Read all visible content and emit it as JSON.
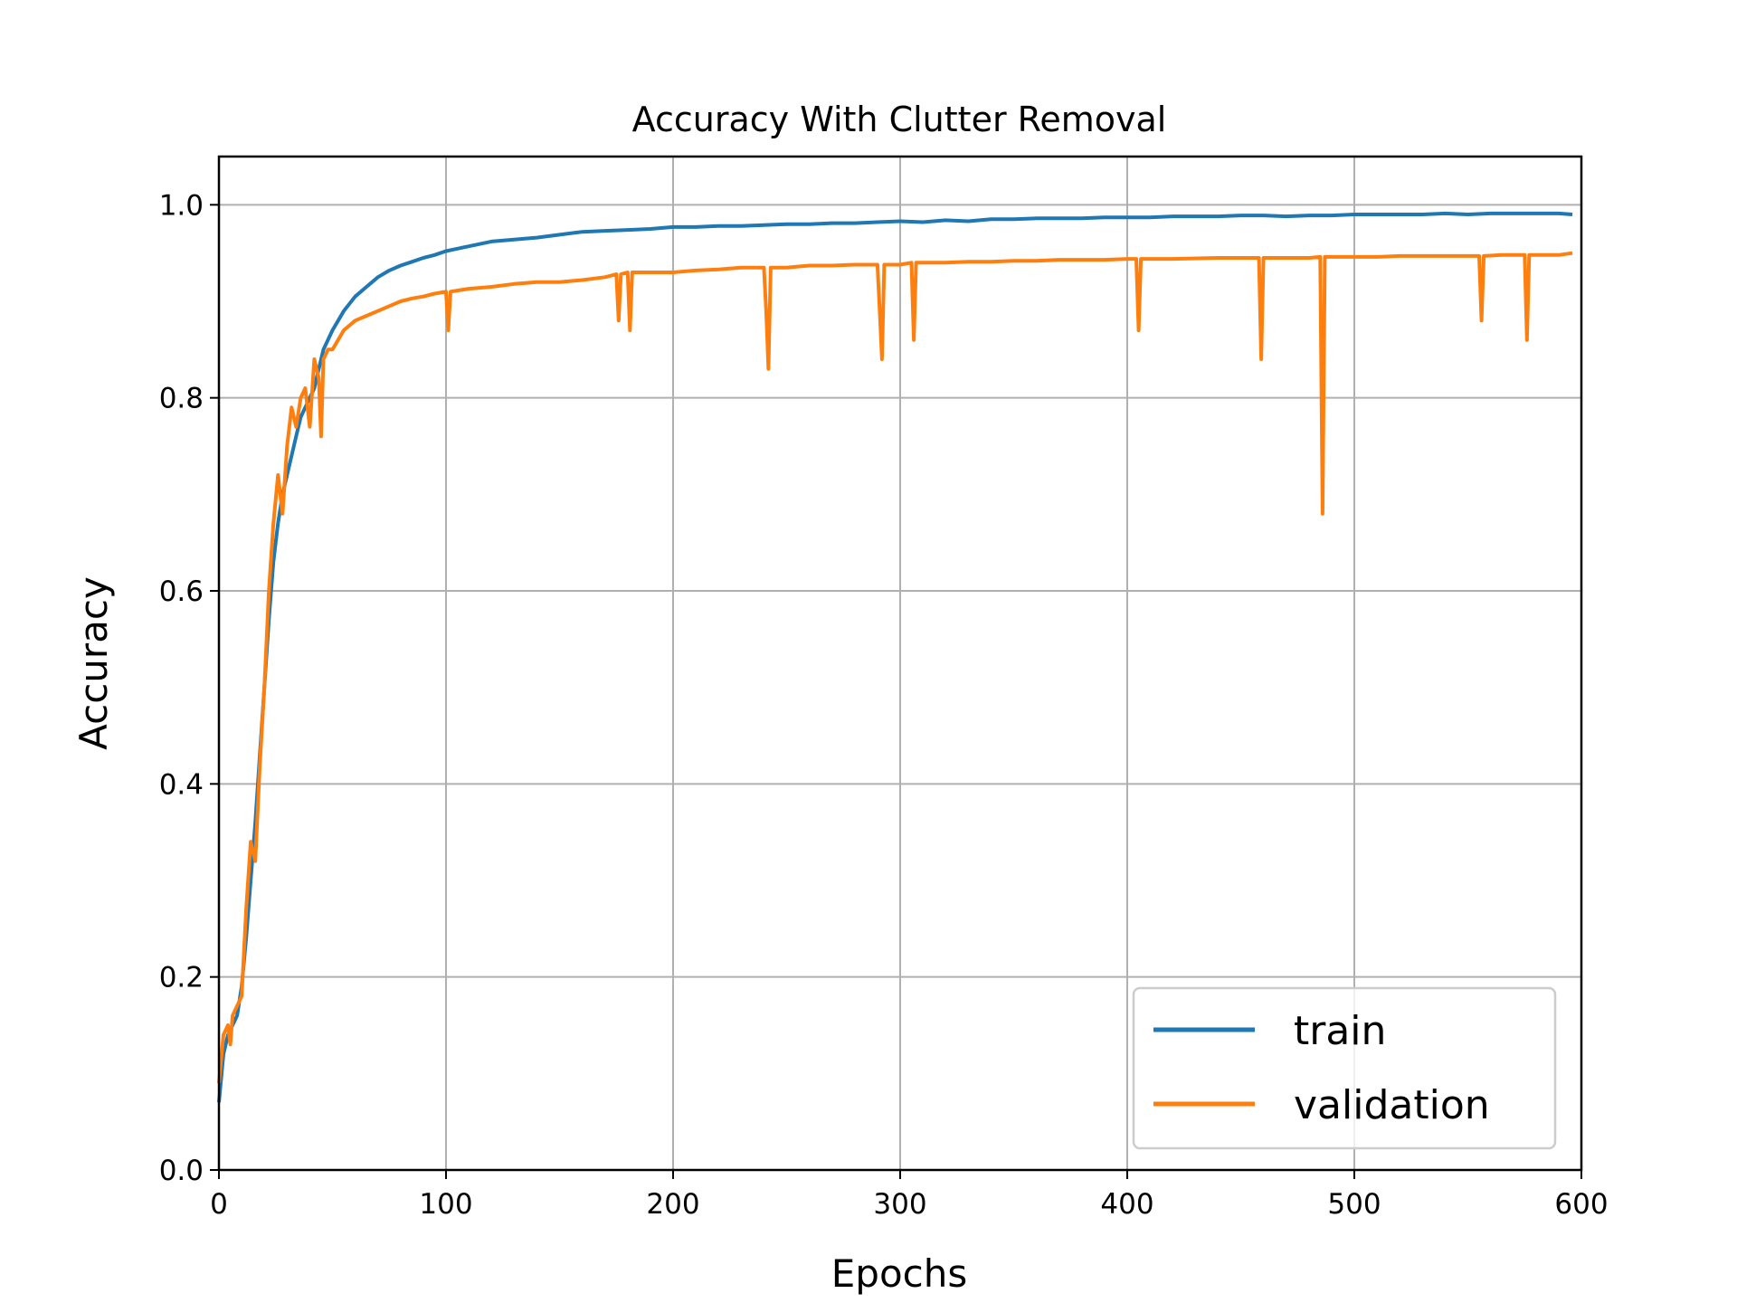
{
  "chart_data": {
    "type": "line",
    "title": "Accuracy With Clutter Removal",
    "xlabel": "Epochs",
    "ylabel": "Accuracy",
    "xlim": [
      0,
      600
    ],
    "ylim": [
      0.0,
      1.05
    ],
    "x_ticks": [
      "0",
      "100",
      "200",
      "300",
      "400",
      "500",
      "600"
    ],
    "y_ticks": [
      "0.0",
      "0.2",
      "0.4",
      "0.6",
      "0.8",
      "1.0"
    ],
    "grid": true,
    "legend_position": "bottom-right",
    "series": [
      {
        "name": "train",
        "color": "#1f77b4",
        "x": [
          0,
          2,
          4,
          6,
          8,
          10,
          12,
          14,
          16,
          18,
          20,
          22,
          24,
          26,
          28,
          30,
          32,
          34,
          36,
          38,
          40,
          42,
          44,
          46,
          48,
          50,
          55,
          60,
          65,
          70,
          75,
          80,
          85,
          90,
          95,
          100,
          110,
          120,
          130,
          140,
          150,
          160,
          170,
          180,
          190,
          200,
          210,
          220,
          230,
          240,
          250,
          260,
          270,
          280,
          290,
          300,
          310,
          320,
          330,
          340,
          350,
          360,
          370,
          380,
          390,
          400,
          410,
          420,
          430,
          440,
          450,
          460,
          470,
          480,
          490,
          500,
          510,
          520,
          530,
          540,
          550,
          560,
          570,
          580,
          590,
          596
        ],
        "values": [
          0.07,
          0.12,
          0.14,
          0.15,
          0.16,
          0.19,
          0.24,
          0.3,
          0.36,
          0.43,
          0.5,
          0.57,
          0.63,
          0.67,
          0.7,
          0.72,
          0.74,
          0.76,
          0.78,
          0.79,
          0.8,
          0.81,
          0.83,
          0.85,
          0.86,
          0.87,
          0.89,
          0.905,
          0.915,
          0.925,
          0.932,
          0.937,
          0.941,
          0.945,
          0.948,
          0.952,
          0.957,
          0.962,
          0.964,
          0.966,
          0.969,
          0.972,
          0.973,
          0.974,
          0.975,
          0.977,
          0.977,
          0.978,
          0.978,
          0.979,
          0.98,
          0.98,
          0.981,
          0.981,
          0.982,
          0.983,
          0.982,
          0.984,
          0.983,
          0.985,
          0.985,
          0.986,
          0.986,
          0.986,
          0.987,
          0.987,
          0.987,
          0.988,
          0.988,
          0.988,
          0.989,
          0.989,
          0.988,
          0.989,
          0.989,
          0.99,
          0.99,
          0.99,
          0.99,
          0.991,
          0.99,
          0.991,
          0.991,
          0.991,
          0.991,
          0.99
        ]
      },
      {
        "name": "validation",
        "color": "#ff7f0e",
        "x": [
          0,
          2,
          4,
          5,
          6,
          8,
          10,
          12,
          14,
          16,
          18,
          20,
          22,
          24,
          26,
          28,
          30,
          32,
          34,
          36,
          38,
          40,
          42,
          44,
          45,
          46,
          48,
          50,
          55,
          60,
          65,
          70,
          75,
          80,
          85,
          90,
          95,
          100,
          101,
          102,
          110,
          120,
          130,
          140,
          150,
          160,
          170,
          175,
          176,
          177,
          180,
          181,
          182,
          190,
          200,
          210,
          220,
          230,
          240,
          241,
          242,
          243,
          250,
          260,
          270,
          280,
          290,
          291,
          292,
          293,
          300,
          305,
          306,
          307,
          320,
          330,
          340,
          350,
          360,
          370,
          380,
          390,
          400,
          404,
          405,
          406,
          420,
          440,
          450,
          458,
          459,
          460,
          470,
          480,
          485,
          486,
          487,
          490,
          500,
          510,
          520,
          540,
          555,
          556,
          557,
          565,
          575,
          576,
          577,
          585,
          590,
          596
        ],
        "values": [
          0.09,
          0.14,
          0.15,
          0.13,
          0.16,
          0.17,
          0.18,
          0.27,
          0.34,
          0.32,
          0.42,
          0.5,
          0.6,
          0.67,
          0.72,
          0.68,
          0.75,
          0.79,
          0.77,
          0.8,
          0.81,
          0.77,
          0.84,
          0.82,
          0.76,
          0.84,
          0.85,
          0.85,
          0.87,
          0.88,
          0.885,
          0.89,
          0.895,
          0.9,
          0.903,
          0.905,
          0.908,
          0.91,
          0.87,
          0.91,
          0.913,
          0.915,
          0.918,
          0.92,
          0.92,
          0.922,
          0.925,
          0.928,
          0.88,
          0.928,
          0.93,
          0.87,
          0.93,
          0.93,
          0.93,
          0.932,
          0.933,
          0.935,
          0.935,
          0.89,
          0.83,
          0.935,
          0.935,
          0.937,
          0.937,
          0.938,
          0.938,
          0.89,
          0.84,
          0.938,
          0.938,
          0.94,
          0.86,
          0.94,
          0.94,
          0.941,
          0.941,
          0.942,
          0.942,
          0.943,
          0.943,
          0.943,
          0.944,
          0.944,
          0.87,
          0.944,
          0.944,
          0.945,
          0.945,
          0.945,
          0.84,
          0.945,
          0.945,
          0.945,
          0.946,
          0.68,
          0.946,
          0.946,
          0.946,
          0.946,
          0.947,
          0.947,
          0.947,
          0.88,
          0.947,
          0.948,
          0.948,
          0.86,
          0.948,
          0.948,
          0.948,
          0.95
        ]
      }
    ]
  }
}
